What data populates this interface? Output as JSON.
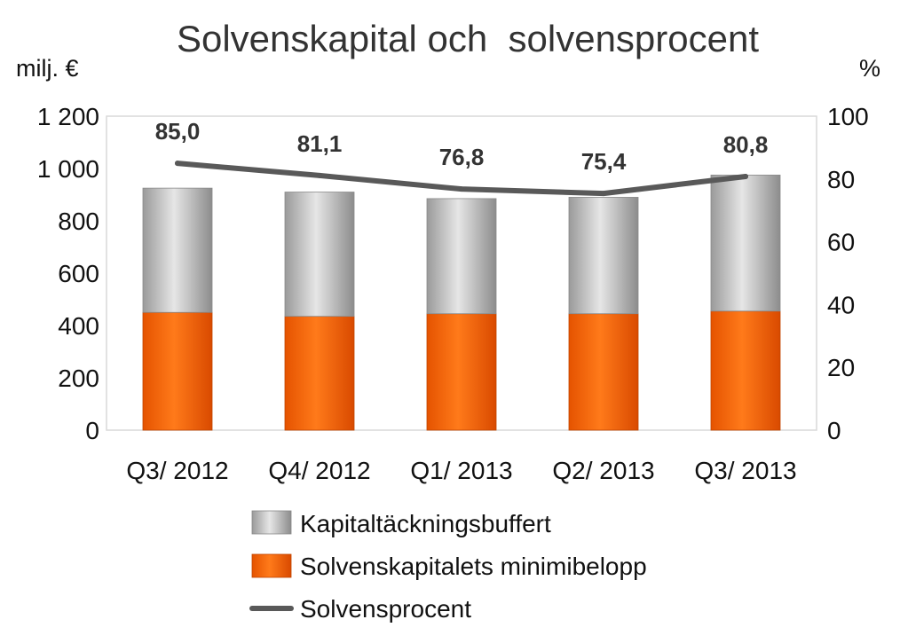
{
  "chart_data": {
    "type": "bar",
    "stacked": true,
    "title": "Solvenskapital och  solvensprocent",
    "y_left_label": "milj. €",
    "y_right_label": "%",
    "y_left_lim": [
      0,
      1200
    ],
    "y_right_lim": [
      0,
      100
    ],
    "y_left_ticks": [
      "0",
      "200",
      "400",
      "600",
      "800",
      "1 000",
      "1 200"
    ],
    "y_right_ticks": [
      "0",
      "20",
      "40",
      "60",
      "80",
      "100"
    ],
    "categories": [
      "Q3/ 2012",
      "Q4/ 2012",
      "Q1/ 2013",
      "Q2/ 2013",
      "Q3/ 2013"
    ],
    "series": [
      {
        "name": "Solvenskapitalets minimibelopp",
        "type": "bar",
        "axis": "left",
        "color": "#ff6600",
        "values": [
          450,
          435,
          445,
          445,
          455
        ]
      },
      {
        "name": "Kapitaltäckningsbuffert",
        "type": "bar",
        "axis": "left",
        "color": "#c8c8c8",
        "values": [
          475,
          475,
          440,
          445,
          520
        ]
      },
      {
        "name": "Solvensprocent",
        "type": "line",
        "axis": "right",
        "color": "#595959",
        "values": [
          85.0,
          81.1,
          76.8,
          75.4,
          80.8
        ],
        "labels": [
          "85,0",
          "81,1",
          "76,8",
          "75,4",
          "80,8"
        ]
      }
    ],
    "legend_order": [
      "Kapitaltäckningsbuffert",
      "Solvenskapitalets minimibelopp",
      "Solvensprocent"
    ],
    "legend_position": "bottom",
    "grid": false
  }
}
